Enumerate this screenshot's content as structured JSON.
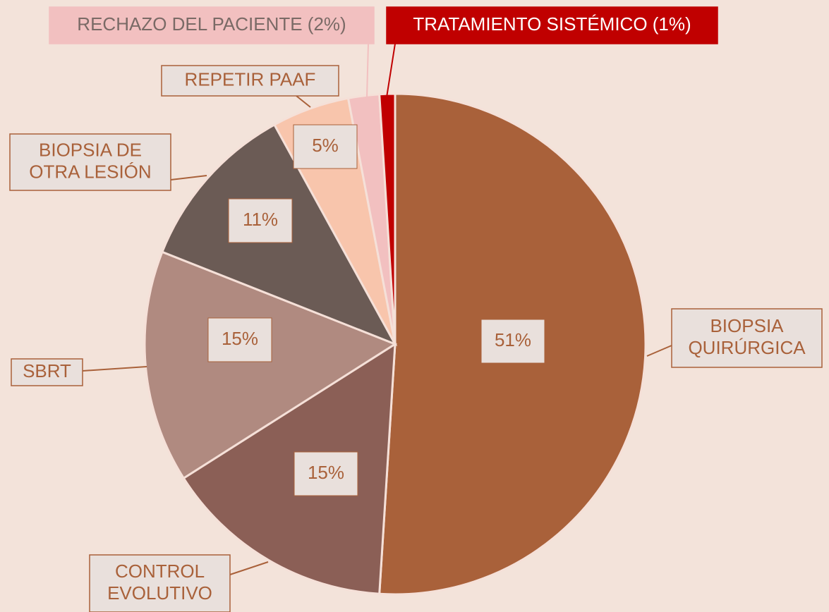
{
  "chart_data": {
    "type": "pie",
    "categories": [
      "BIOPSIA\nQUIRÚRGICA",
      "CONTROL\nEVOLUTIVO",
      "SBRT",
      "BIOPSIA DE\nOTRA LESIÓN",
      "REPETIR PAAF",
      "RECHAZO DEL PACIENTE (2%)",
      "TRATAMIENTO SISTÉMICO (1%)"
    ],
    "values": [
      51,
      15,
      15,
      11,
      5,
      2,
      1
    ],
    "value_labels": [
      "51%",
      "15%",
      "15%",
      "11%",
      "5%",
      null,
      null
    ],
    "colors": [
      "#a9613a",
      "#8b5f56",
      "#b08a80",
      "#6b5b55",
      "#f8c5ac",
      "#f2c0c0",
      "#c00000"
    ]
  }
}
